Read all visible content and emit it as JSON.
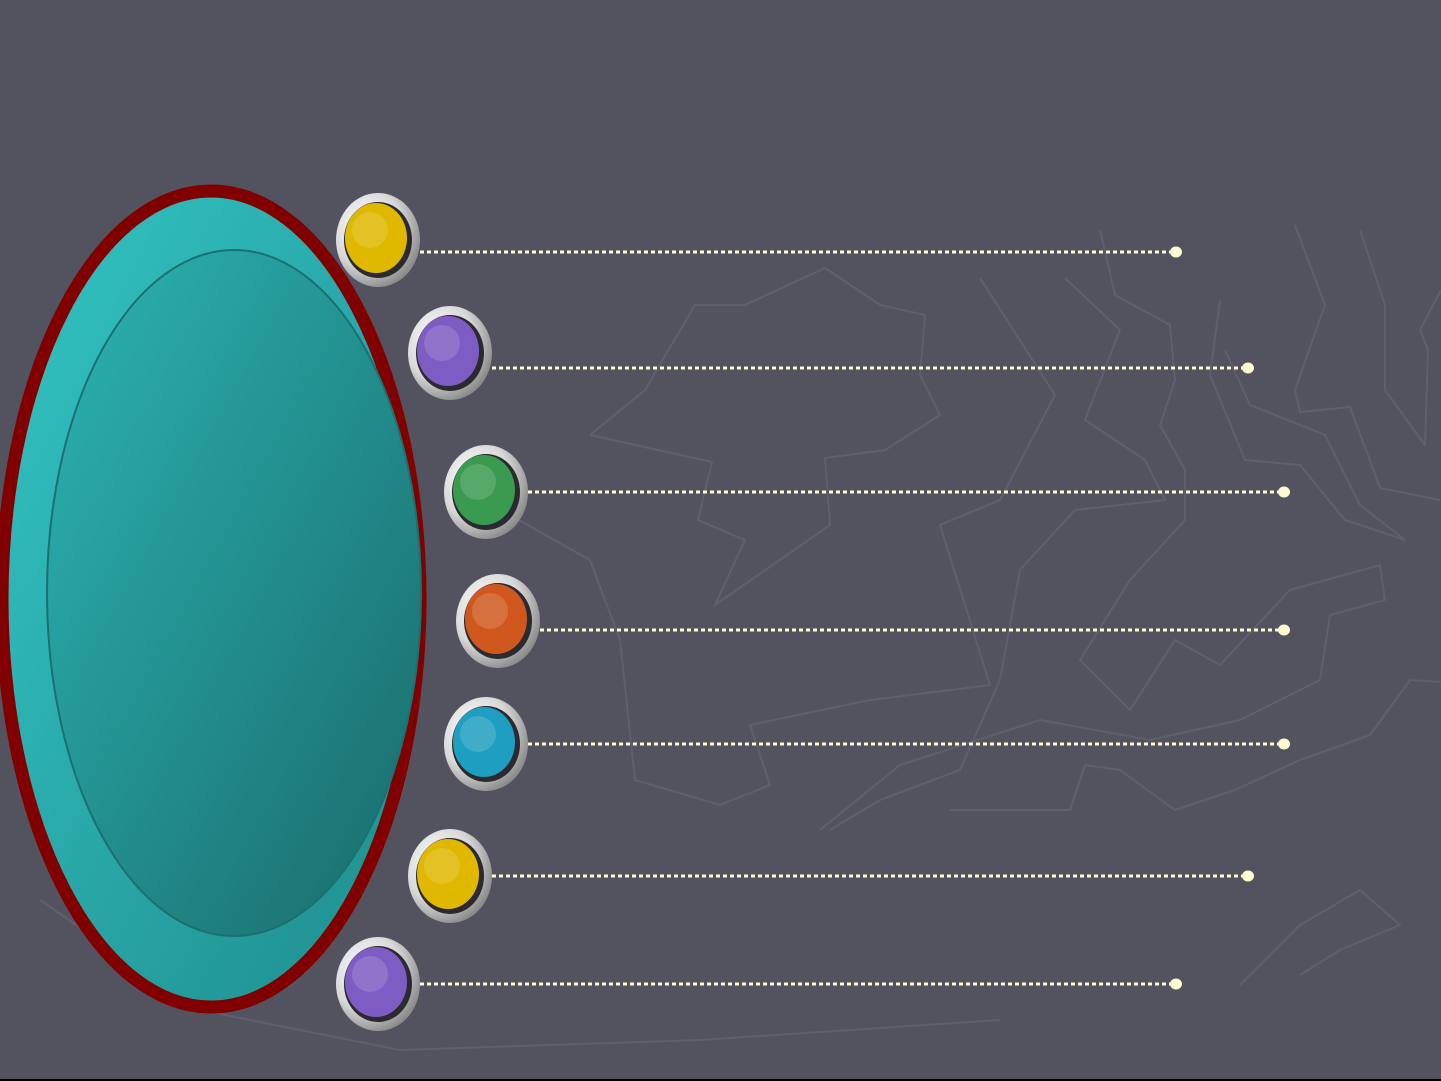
{
  "slide": {
    "background_color": "#52535f",
    "oval": {
      "fill_color": "#2aa8a8",
      "inner_color": "#1e7e7c",
      "border_color": "#800000"
    },
    "connector_color": "#fffbd0",
    "bullets": [
      {
        "icon": "yellow-orb",
        "color": "#e0b800"
      },
      {
        "icon": "purple-orb",
        "color": "#7d5cc4"
      },
      {
        "icon": "green-orb",
        "color": "#3a9a50"
      },
      {
        "icon": "orange-orb",
        "color": "#d0581e"
      },
      {
        "icon": "blue-orb",
        "color": "#1e9ec0"
      },
      {
        "icon": "yellow-orb",
        "color": "#e0b800"
      },
      {
        "icon": "purple-orb",
        "color": "#7d5cc4"
      }
    ]
  }
}
